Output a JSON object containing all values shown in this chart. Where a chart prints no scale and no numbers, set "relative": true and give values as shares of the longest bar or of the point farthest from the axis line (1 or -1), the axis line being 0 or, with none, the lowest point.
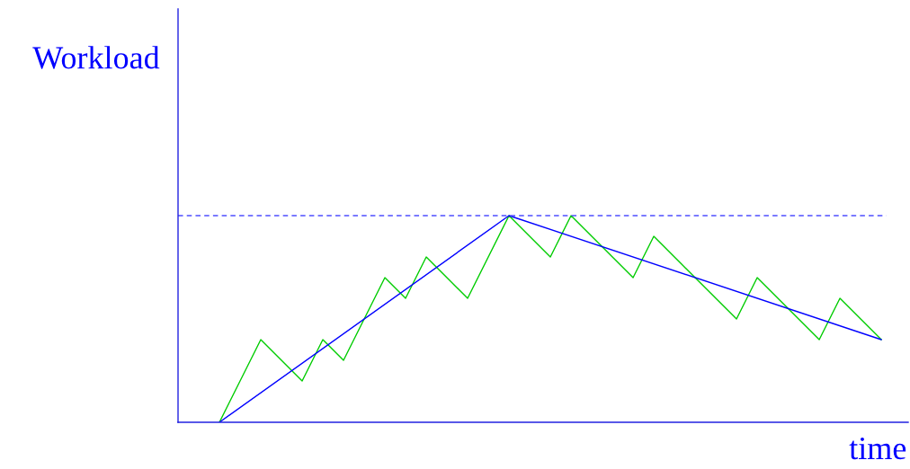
{
  "chart_data": {
    "type": "line",
    "relative": true,
    "xlabel": "time",
    "ylabel": "Workload",
    "categories": [
      null,
      null,
      null,
      null,
      null,
      null,
      null,
      null,
      null,
      null,
      null,
      null,
      null,
      null,
      null,
      null,
      null,
      null,
      null,
      null,
      null,
      null,
      null,
      null,
      null,
      null,
      null,
      null,
      null,
      null,
      null,
      null,
      null
    ],
    "series": [
      {
        "color": "#00cc00",
        "values": [
          0,
          null,
          0.4,
          null,
          0.2,
          0.4,
          0.3,
          null,
          0.7,
          0.6,
          0.8,
          null,
          0.6,
          null,
          1,
          null,
          0.8,
          1,
          null,
          null,
          0.7,
          0.9,
          null,
          null,
          null,
          0.5,
          0.7,
          null,
          null,
          0.4,
          0.6,
          null,
          0.4
        ]
      },
      {
        "color": "#0000ff",
        "values": [
          0,
          null,
          null,
          null,
          null,
          null,
          null,
          null,
          null,
          null,
          null,
          null,
          null,
          null,
          1,
          null,
          null,
          null,
          null,
          null,
          null,
          null,
          null,
          null,
          null,
          null,
          null,
          null,
          null,
          null,
          null,
          null,
          0.4
        ]
      }
    ],
    "ref_lines": [
      {
        "axis": "y",
        "value": 1,
        "color": "#4f4fff",
        "line_style": "dashed"
      }
    ],
    "legend": false,
    "grid": false
  }
}
